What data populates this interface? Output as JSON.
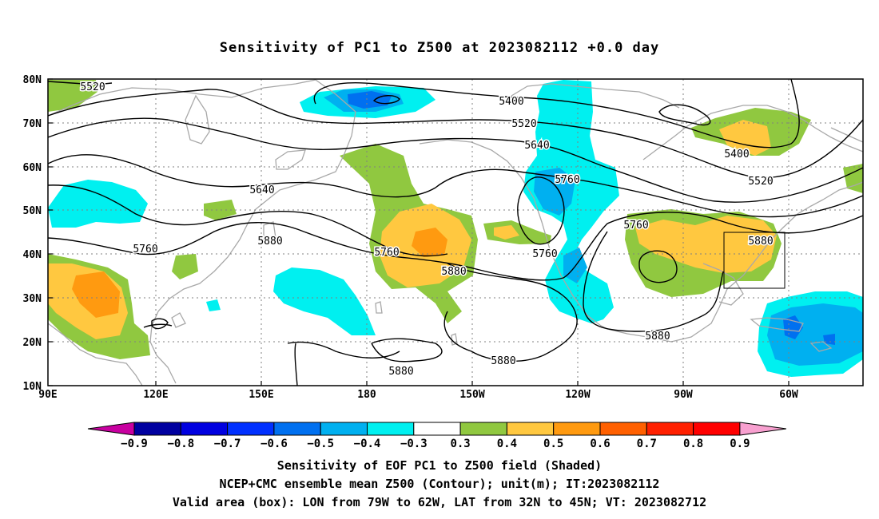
{
  "title": "Sensitivity of PC1 to Z500 at 2023082112 +0.0 day",
  "axes": {
    "lat_labels": [
      "80N",
      "70N",
      "60N",
      "50N",
      "40N",
      "30N",
      "20N",
      "10N"
    ],
    "lon_labels": [
      "90E",
      "120E",
      "150E",
      "180",
      "150W",
      "120W",
      "90W",
      "60W"
    ]
  },
  "contour_labels": [
    {
      "text": "5520"
    },
    {
      "text": "5400"
    },
    {
      "text": "5520"
    },
    {
      "text": "5640"
    },
    {
      "text": "5760"
    },
    {
      "text": "5400"
    },
    {
      "text": "5520"
    },
    {
      "text": "5640"
    },
    {
      "text": "5880"
    },
    {
      "text": "5760"
    },
    {
      "text": "5760"
    },
    {
      "text": "5880"
    },
    {
      "text": "5760"
    },
    {
      "text": "5880"
    },
    {
      "text": "5760"
    },
    {
      "text": "5880"
    },
    {
      "text": "5880"
    },
    {
      "text": "5880"
    }
  ],
  "colorbar": {
    "colors": [
      "#0000a0",
      "#0000e0",
      "#0030ff",
      "#0070f0",
      "#00b0f0",
      "#00f0f0",
      "#ffffff",
      "#90c840",
      "#ffc840",
      "#ff9a10",
      "#ff6000",
      "#ff2000",
      "#ff0000"
    ],
    "left_tip": "#c800a0",
    "right_tip": "#f8a0d0",
    "labels": [
      "−0.9",
      "−0.8",
      "−0.7",
      "−0.6",
      "−0.5",
      "−0.4",
      "−0.3",
      "0.3",
      "0.4",
      "0.5",
      "0.6",
      "0.7",
      "0.8",
      "0.9"
    ]
  },
  "captions": {
    "line1": "Sensitivity of EOF PC1 to Z500 field (Shaded)",
    "line2": "NCEP+CMC ensemble mean Z500 (Contour); unit(m); IT:2023082112",
    "line3": "Valid area (box): LON from 79W to 62W, LAT from 32N to 45N; VT: 2023082712"
  }
}
